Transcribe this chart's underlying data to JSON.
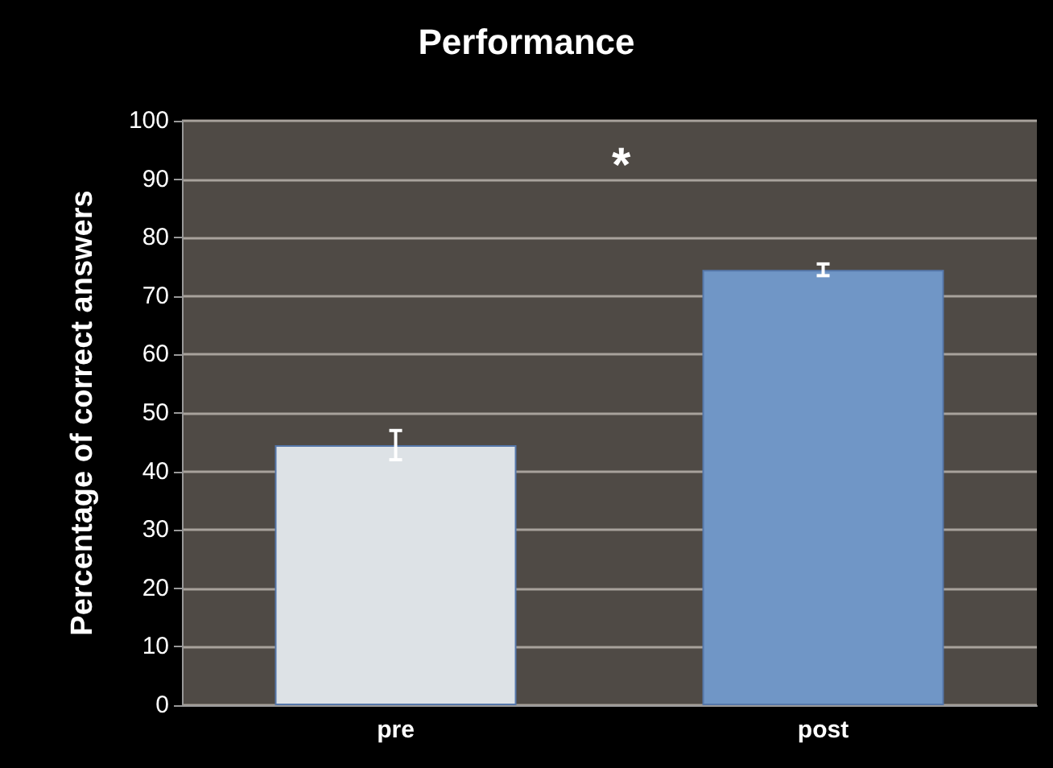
{
  "chart_data": {
    "type": "bar",
    "title": "Performance",
    "ylabel": "Percentage of correct answers",
    "categories": [
      "pre",
      "post"
    ],
    "values": [
      44.5,
      74.5
    ],
    "colors": [
      "#dde2e6",
      "#7096c6"
    ],
    "errors": [
      2.5,
      1
    ],
    "ylim": [
      0,
      100
    ],
    "yticks": [
      0,
      10,
      20,
      30,
      40,
      50,
      60,
      70,
      80,
      90,
      100
    ],
    "grid": "y",
    "annotations": [
      "*"
    ]
  }
}
